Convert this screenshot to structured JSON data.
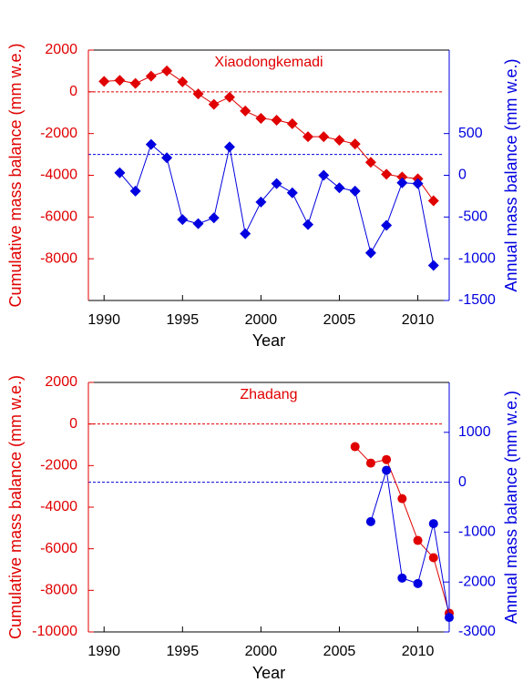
{
  "chart_data": [
    {
      "type": "line",
      "title": "Xiaodongkemadi",
      "title_color": "#e00000",
      "x_label": "Year",
      "y_label": "Cumulative mass balance (mm w.e.)",
      "y2_label": "Annual mass balance (mm w.e.)",
      "y_color": "#e00000",
      "y2_color": "#0000e0",
      "xlim": [
        1989,
        2012
      ],
      "xticks": [
        1990,
        1995,
        2000,
        2005,
        2010
      ],
      "ylim": [
        -10000,
        2000
      ],
      "yticks": [
        -8000,
        -6000,
        -4000,
        -2000,
        0,
        2000
      ],
      "y2lim": [
        -1500,
        1500
      ],
      "y2ticks": [
        -1500,
        -1000,
        -500,
        0,
        500
      ],
      "reference_lines": [
        {
          "axis": "y",
          "value": 0,
          "color": "#e00000"
        },
        {
          "axis": "y2",
          "value": 250,
          "color": "#0000e0"
        }
      ],
      "series": [
        {
          "color": "#e00000",
          "marker": "diamond",
          "axis": "y",
          "x": [
            1990,
            1991,
            1992,
            1993,
            1994,
            1995,
            1996,
            1997,
            1998,
            1999,
            2000,
            2001,
            2002,
            2003,
            2004,
            2005,
            2006,
            2007,
            2008,
            2009,
            2010,
            2011
          ],
          "values": [
            500,
            550,
            400,
            750,
            1000,
            480,
            -100,
            -600,
            -260,
            -920,
            -1270,
            -1360,
            -1530,
            -2150,
            -2150,
            -2320,
            -2500,
            -3380,
            -3950,
            -4080,
            -4170,
            -5220
          ]
        },
        {
          "color": "#0000e0",
          "marker": "diamond",
          "axis": "y2",
          "x": [
            1991,
            1992,
            1993,
            1994,
            1995,
            1996,
            1997,
            1998,
            1999,
            2000,
            2001,
            2002,
            2003,
            2004,
            2005,
            2006,
            2007,
            2008,
            2009,
            2010,
            2011
          ],
          "values": [
            30,
            -190,
            370,
            210,
            -530,
            -580,
            -510,
            340,
            -700,
            -320,
            -100,
            -210,
            -590,
            0,
            -150,
            -190,
            -930,
            -600,
            -90,
            -100,
            -1080
          ]
        }
      ]
    },
    {
      "type": "line",
      "title": "Zhadang",
      "title_color": "#e00000",
      "x_label": "Year",
      "y_label": "Cumulative mass balance (mm w.e.)",
      "y2_label": "Annual mass balance (mm w.e.)",
      "y_color": "#e00000",
      "y2_color": "#0000e0",
      "xlim": [
        1989,
        2012
      ],
      "xticks": [
        1990,
        1995,
        2000,
        2005,
        2010
      ],
      "ylim": [
        -10000,
        2000
      ],
      "yticks": [
        -10000,
        -8000,
        -6000,
        -4000,
        -2000,
        0,
        2000
      ],
      "y2lim": [
        -3000,
        2000
      ],
      "y2ticks": [
        -3000,
        -2000,
        -1000,
        0,
        1000
      ],
      "reference_lines": [
        {
          "axis": "y",
          "value": 0,
          "color": "#e00000"
        },
        {
          "axis": "y2",
          "value": 0,
          "color": "#0000e0"
        }
      ],
      "series": [
        {
          "color": "#e00000",
          "marker": "circle",
          "axis": "y",
          "x": [
            2006,
            2007,
            2008,
            2009,
            2010,
            2011,
            2012
          ],
          "values": [
            -1090,
            -1880,
            -1710,
            -3590,
            -5600,
            -6430,
            -9100
          ]
        },
        {
          "color": "#0000e0",
          "marker": "circle",
          "axis": "y2",
          "x": [
            2007,
            2008,
            2009,
            2010,
            2011,
            2012
          ],
          "values": [
            -790,
            240,
            -1920,
            -2030,
            -830,
            -2710
          ]
        }
      ]
    }
  ]
}
